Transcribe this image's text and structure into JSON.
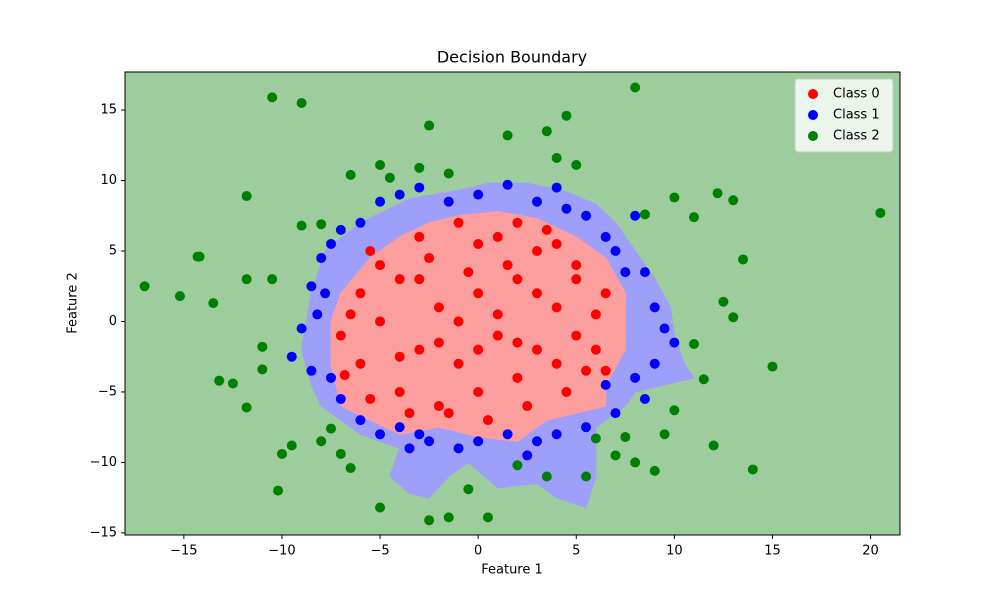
{
  "chart_data": {
    "type": "scatter",
    "title": "Decision Boundary",
    "x_label": "Feature 1",
    "y_label": "Feature 2",
    "xlim": [
      -18,
      21.5
    ],
    "ylim": [
      -15.15,
      17.7
    ],
    "xticks": [
      {
        "value": -15,
        "label": "−15"
      },
      {
        "value": -10,
        "label": "−10"
      },
      {
        "value": -5,
        "label": "−5"
      },
      0,
      5,
      10,
      15,
      20
    ],
    "yticks": [
      {
        "value": -15,
        "label": "−15"
      },
      {
        "value": -10,
        "label": "−10"
      },
      {
        "value": -5,
        "label": "−5"
      },
      0,
      5,
      10,
      15
    ],
    "background_color": "#9dcc9d",
    "regions": [
      {
        "color": "#9e9efb",
        "x": [
          -1,
          0.5,
          2.5,
          4.5,
          6,
          7,
          8,
          9,
          9.8,
          10,
          10.5,
          11,
          8,
          7.5,
          6,
          6,
          5.5,
          4,
          3,
          1,
          -0.5,
          -1.5,
          -2.5,
          -3.5,
          -4.5,
          -4,
          -6,
          -8,
          -8.5,
          -9,
          -8.5,
          -7.8,
          -6,
          -3.5
        ],
        "y": [
          9.3,
          9.8,
          9.8,
          9.2,
          8.3,
          7,
          5,
          3,
          1,
          -1,
          -3,
          -4,
          -5,
          -6,
          -7.5,
          -11,
          -13.2,
          -12.5,
          -11.5,
          -11.8,
          -10,
          -11,
          -12.5,
          -12.2,
          -11,
          -9,
          -8,
          -6,
          -4.5,
          -2,
          2,
          5,
          7,
          8.7
        ]
      },
      {
        "color": "#fd9e9e",
        "x": [
          -1,
          1,
          3,
          5,
          6.5,
          7.5,
          7.5,
          6.5,
          6.5,
          5,
          3.5,
          2,
          0,
          -2,
          -4,
          -5.5,
          -7,
          -7.5,
          -7.5,
          -7,
          -5.5,
          -4,
          -2.5
        ],
        "y": [
          7.5,
          7.8,
          7.3,
          6,
          4.5,
          2,
          -2,
          -4.5,
          -6,
          -6.5,
          -7,
          -8.5,
          -8.2,
          -7.5,
          -8,
          -7,
          -6,
          -3,
          0,
          2,
          4.5,
          6,
          7
        ]
      }
    ],
    "legend": "upper right",
    "series": [
      {
        "name": "Class 0",
        "color": "#ff0000",
        "x": [
          -7,
          -6,
          -5,
          -4,
          -3,
          -2,
          -1,
          0,
          1,
          2,
          3,
          4,
          5,
          6,
          6.5,
          -6,
          -5,
          -4,
          -3,
          -2,
          -1,
          0,
          1,
          2,
          3,
          4,
          5,
          -6.5,
          -5.5,
          -2.5,
          0,
          2,
          3.5,
          5,
          6,
          6.5,
          4.5,
          2.5,
          0.5,
          -1.5,
          -3.5,
          -5.5,
          -6.8,
          -1,
          1,
          0,
          -2,
          2,
          3,
          -3,
          -4,
          1.5,
          -0.5,
          4,
          5.5
        ],
        "values": [
          -1,
          2,
          4,
          -5,
          6,
          -6,
          7,
          -5,
          6,
          -4,
          5,
          -3,
          4,
          -2,
          2,
          -3,
          0,
          3,
          -2,
          1,
          -3,
          2,
          -1,
          3,
          -2,
          1,
          -1,
          0.5,
          5,
          4.5,
          5.5,
          7,
          6.5,
          3,
          0.5,
          -3.5,
          -5,
          -6,
          -7,
          -6.5,
          -6.5,
          -5.5,
          -3.8,
          0,
          0.5,
          -2,
          -1.5,
          -1.5,
          2,
          3,
          -2.5,
          4,
          3.5,
          5.5,
          -3.5
        ]
      },
      {
        "name": "Class 1",
        "color": "#0000ff",
        "x": [
          -9.5,
          -9,
          -8.5,
          -8,
          -7.5,
          -7,
          -6,
          -5,
          -4,
          -3,
          -1.5,
          0,
          1.5,
          3,
          4.5,
          5.5,
          6.5,
          7,
          8.5,
          9,
          9.5,
          10,
          9,
          8,
          8.5,
          7,
          5.5,
          4,
          3,
          1.5,
          0,
          -1,
          -2.5,
          -4,
          -5,
          -6,
          -7,
          -7.5,
          -8.5,
          -3.5,
          2.5,
          -7.8,
          6.5,
          7.5,
          8,
          -8.2,
          -3,
          4
        ],
        "values": [
          -2.5,
          -0.5,
          2.5,
          4.5,
          5.5,
          6.5,
          7,
          8.5,
          9,
          9.5,
          8.5,
          9,
          9.7,
          8.5,
          8,
          7.5,
          6,
          5,
          3.5,
          1,
          -0.5,
          -1.5,
          -3,
          -4,
          -5.5,
          -6.5,
          -7.5,
          -8,
          -8.5,
          -8,
          -8.5,
          -9,
          -8.5,
          -7.5,
          -8,
          -7,
          -5.5,
          -4,
          -3.5,
          -9,
          -9.5,
          2,
          -4.5,
          3.5,
          7.5,
          0.5,
          -8,
          9.5
        ]
      },
      {
        "name": "Class 2",
        "color": "#008000",
        "x": [
          -17,
          -15.2,
          -14.3,
          -14.2,
          -13.5,
          -13.2,
          -12.5,
          -11.8,
          -11.8,
          -11.8,
          -10.5,
          -10.2,
          -9,
          -9.5,
          -10,
          -8,
          -7.5,
          -7,
          -6.5,
          -5,
          -2.5,
          -1.5,
          -0.5,
          0.5,
          2,
          3.5,
          5.5,
          7,
          8,
          9,
          10,
          12,
          14,
          15,
          13,
          12.5,
          13.5,
          13,
          12.2,
          11,
          10,
          8,
          1.5,
          3.5,
          4.5,
          -2.5,
          -5,
          -6.5,
          20.5,
          -11,
          -11,
          -10.5,
          -9,
          -8,
          -3,
          -1.5,
          4,
          5,
          8.5,
          11,
          11.5,
          9.5,
          7.5,
          6,
          -4.5
        ],
        "values": [
          2.5,
          1.8,
          4.6,
          4.6,
          1.3,
          -4.2,
          -4.4,
          8.9,
          3,
          -6.1,
          15.9,
          -12,
          15.5,
          -8.8,
          -9.4,
          -8.5,
          -7.6,
          -9.4,
          -10.4,
          -13.2,
          -14.1,
          -13.9,
          -11.9,
          -13.9,
          -10.2,
          -11,
          -11,
          -9.5,
          -10,
          -10.6,
          -6.3,
          -8.8,
          -10.5,
          -3.2,
          0.3,
          1.4,
          4.4,
          8.6,
          9.1,
          7.4,
          8.8,
          16.6,
          13.2,
          13.5,
          14.6,
          13.9,
          11.1,
          10.4,
          7.7,
          -1.8,
          -3.4,
          3,
          6.8,
          6.9,
          10.9,
          10.5,
          11.6,
          11.1,
          7.6,
          -1.6,
          -4.1,
          -8,
          -8.2,
          -8.3,
          10.2
        ]
      }
    ]
  }
}
